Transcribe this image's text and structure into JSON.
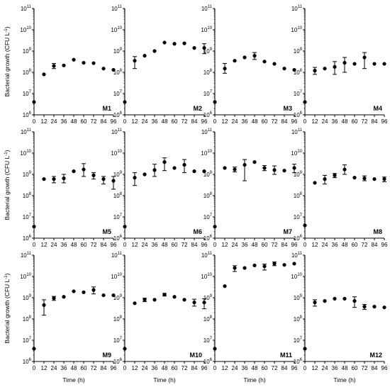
{
  "chart_data": {
    "type": "scatter",
    "title": "",
    "y_axis": {
      "label_main": "Bacterial growth (CFU L",
      "label_sup": "-1",
      "label_end": ")",
      "scale": "log",
      "ylim": [
        1000000,
        100000000000
      ],
      "tick_bases": [
        "10",
        "10",
        "10",
        "10",
        "10",
        "10"
      ],
      "tick_exponents": [
        "6",
        "7",
        "8",
        "9",
        "10",
        "11"
      ]
    },
    "x_axis": {
      "label": "Time (h)",
      "xlim": [
        0,
        96
      ],
      "ticks": [
        "0",
        "12",
        "24",
        "36",
        "48",
        "60",
        "72",
        "84",
        "96"
      ]
    },
    "grid": false,
    "marker_color": "#000000",
    "panels": [
      {
        "name": "M1",
        "points": [
          {
            "x": 0,
            "y": 4000000
          },
          {
            "x": 12,
            "y": 80000000
          },
          {
            "x": 24,
            "y": 200000000,
            "lo": 150000000,
            "hi": 260000000
          },
          {
            "x": 36,
            "y": 210000000
          },
          {
            "x": 48,
            "y": 390000000
          },
          {
            "x": 60,
            "y": 280000000
          },
          {
            "x": 72,
            "y": 270000000
          },
          {
            "x": 84,
            "y": 150000000
          },
          {
            "x": 96,
            "y": 130000000
          }
        ]
      },
      {
        "name": "M2",
        "points": [
          {
            "x": 0,
            "y": 4000000
          },
          {
            "x": 12,
            "y": 350000000,
            "lo": 150000000,
            "hi": 550000000
          },
          {
            "x": 24,
            "y": 600000000
          },
          {
            "x": 36,
            "y": 1000000000
          },
          {
            "x": 48,
            "y": 2500000000
          },
          {
            "x": 60,
            "y": 2200000000
          },
          {
            "x": 72,
            "y": 2300000000
          },
          {
            "x": 84,
            "y": 1400000000
          },
          {
            "x": 96,
            "y": 1400000000,
            "lo": 750000000,
            "hi": 2200000000
          }
        ]
      },
      {
        "name": "M3",
        "points": [
          {
            "x": 0,
            "y": 4000000
          },
          {
            "x": 12,
            "y": 150000000,
            "lo": 90000000,
            "hi": 260000000
          },
          {
            "x": 24,
            "y": 350000000
          },
          {
            "x": 36,
            "y": 500000000
          },
          {
            "x": 48,
            "y": 600000000,
            "lo": 400000000,
            "hi": 850000000
          },
          {
            "x": 60,
            "y": 320000000
          },
          {
            "x": 72,
            "y": 250000000
          },
          {
            "x": 84,
            "y": 150000000
          },
          {
            "x": 96,
            "y": 130000000
          }
        ]
      },
      {
        "name": "M4",
        "points": [
          {
            "x": 0,
            "y": 4000000
          },
          {
            "x": 12,
            "y": 120000000,
            "lo": 80000000,
            "hi": 170000000
          },
          {
            "x": 24,
            "y": 150000000
          },
          {
            "x": 36,
            "y": 180000000,
            "lo": 80000000,
            "hi": 320000000
          },
          {
            "x": 48,
            "y": 280000000,
            "lo": 100000000,
            "hi": 500000000
          },
          {
            "x": 60,
            "y": 250000000
          },
          {
            "x": 72,
            "y": 500000000,
            "lo": 150000000,
            "hi": 850000000
          },
          {
            "x": 84,
            "y": 250000000
          },
          {
            "x": 96,
            "y": 250000000
          }
        ]
      },
      {
        "name": "M5",
        "points": [
          {
            "x": 0,
            "y": 3500000
          },
          {
            "x": 12,
            "y": 600000000
          },
          {
            "x": 24,
            "y": 600000000,
            "lo": 400000000,
            "hi": 800000000
          },
          {
            "x": 36,
            "y": 650000000,
            "lo": 400000000,
            "hi": 1000000000
          },
          {
            "x": 48,
            "y": 1400000000
          },
          {
            "x": 60,
            "y": 1700000000,
            "lo": 800000000,
            "hi": 3200000000
          },
          {
            "x": 72,
            "y": 900000000,
            "lo": 600000000,
            "hi": 1200000000
          },
          {
            "x": 84,
            "y": 600000000,
            "lo": 350000000,
            "hi": 800000000
          },
          {
            "x": 96,
            "y": 500000000,
            "lo": 200000000,
            "hi": 800000000
          }
        ]
      },
      {
        "name": "M6",
        "points": [
          {
            "x": 0,
            "y": 3500000
          },
          {
            "x": 12,
            "y": 700000000,
            "lo": 300000000,
            "hi": 1200000000
          },
          {
            "x": 24,
            "y": 1000000000
          },
          {
            "x": 36,
            "y": 1600000000,
            "lo": 800000000,
            "hi": 3000000000
          },
          {
            "x": 48,
            "y": 3800000000,
            "lo": 1500000000,
            "hi": 6000000000
          },
          {
            "x": 60,
            "y": 2000000000
          },
          {
            "x": 72,
            "y": 2800000000,
            "lo": 1200000000,
            "hi": 5000000000
          },
          {
            "x": 84,
            "y": 1400000000
          },
          {
            "x": 96,
            "y": 1400000000
          }
        ]
      },
      {
        "name": "M7",
        "points": [
          {
            "x": 0,
            "y": 3500000
          },
          {
            "x": 12,
            "y": 2000000000
          },
          {
            "x": 24,
            "y": 1700000000,
            "lo": 1300000000,
            "hi": 2200000000
          },
          {
            "x": 36,
            "y": 2800000000,
            "lo": 500000000,
            "hi": 5000000000
          },
          {
            "x": 48,
            "y": 3800000000
          },
          {
            "x": 60,
            "y": 2000000000,
            "lo": 1500000000,
            "hi": 2600000000
          },
          {
            "x": 72,
            "y": 1600000000,
            "lo": 1000000000,
            "hi": 2500000000
          },
          {
            "x": 84,
            "y": 1500000000
          },
          {
            "x": 96,
            "y": 2000000000,
            "lo": 1200000000,
            "hi": 3000000000
          }
        ]
      },
      {
        "name": "M8",
        "points": [
          {
            "x": 0,
            "y": 4000000
          },
          {
            "x": 12,
            "y": 400000000
          },
          {
            "x": 24,
            "y": 600000000,
            "lo": 350000000,
            "hi": 900000000
          },
          {
            "x": 36,
            "y": 900000000,
            "lo": 700000000,
            "hi": 1100000000
          },
          {
            "x": 48,
            "y": 1700000000,
            "lo": 1000000000,
            "hi": 2800000000
          },
          {
            "x": 60,
            "y": 700000000
          },
          {
            "x": 72,
            "y": 650000000,
            "lo": 500000000,
            "hi": 850000000
          },
          {
            "x": 84,
            "y": 600000000
          },
          {
            "x": 96,
            "y": 600000000,
            "lo": 450000000,
            "hi": 750000000
          }
        ]
      },
      {
        "name": "M9",
        "points": [
          {
            "x": 0,
            "y": 4000000
          },
          {
            "x": 12,
            "y": 450000000,
            "lo": 150000000,
            "hi": 800000000
          },
          {
            "x": 24,
            "y": 950000000,
            "lo": 750000000,
            "hi": 1150000000
          },
          {
            "x": 36,
            "y": 1100000000
          },
          {
            "x": 48,
            "y": 2000000000
          },
          {
            "x": 60,
            "y": 1800000000
          },
          {
            "x": 72,
            "y": 2300000000,
            "lo": 1500000000,
            "hi": 3200000000
          },
          {
            "x": 84,
            "y": 1300000000
          },
          {
            "x": 96,
            "y": 1300000000
          }
        ]
      },
      {
        "name": "M10",
        "points": [
          {
            "x": 0,
            "y": 4000000
          },
          {
            "x": 12,
            "y": 550000000
          },
          {
            "x": 24,
            "y": 800000000,
            "lo": 650000000,
            "hi": 950000000
          },
          {
            "x": 36,
            "y": 800000000
          },
          {
            "x": 48,
            "y": 1400000000,
            "lo": 1200000000,
            "hi": 1600000000
          },
          {
            "x": 60,
            "y": 1100000000
          },
          {
            "x": 72,
            "y": 800000000
          },
          {
            "x": 84,
            "y": 600000000,
            "lo": 400000000,
            "hi": 850000000
          },
          {
            "x": 96,
            "y": 600000000,
            "lo": 300000000,
            "hi": 900000000
          }
        ]
      },
      {
        "name": "M11",
        "points": [
          {
            "x": 0,
            "y": 4000000
          },
          {
            "x": 12,
            "y": 3500000000
          },
          {
            "x": 24,
            "y": 25000000000,
            "lo": 17000000000,
            "hi": 32000000000
          },
          {
            "x": 36,
            "y": 25000000000
          },
          {
            "x": 48,
            "y": 33000000000
          },
          {
            "x": 60,
            "y": 30000000000,
            "lo": 20000000000,
            "hi": 38000000000
          },
          {
            "x": 72,
            "y": 40000000000,
            "lo": 32000000000,
            "hi": 48000000000
          },
          {
            "x": 84,
            "y": 35000000000
          },
          {
            "x": 96,
            "y": 40000000000
          }
        ]
      },
      {
        "name": "M12",
        "points": [
          {
            "x": 0,
            "y": 4000000
          },
          {
            "x": 12,
            "y": 600000000,
            "lo": 400000000,
            "hi": 800000000
          },
          {
            "x": 24,
            "y": 700000000
          },
          {
            "x": 36,
            "y": 900000000
          },
          {
            "x": 48,
            "y": 900000000
          },
          {
            "x": 60,
            "y": 700000000,
            "lo": 350000000,
            "hi": 1100000000
          },
          {
            "x": 72,
            "y": 380000000,
            "lo": 280000000,
            "hi": 480000000
          },
          {
            "x": 84,
            "y": 380000000
          },
          {
            "x": 96,
            "y": 350000000
          }
        ]
      }
    ]
  }
}
